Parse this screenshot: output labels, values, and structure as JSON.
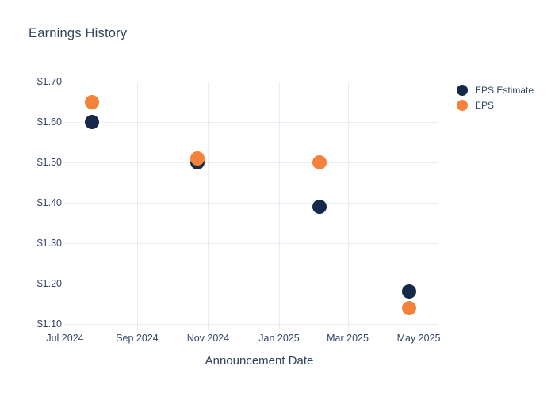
{
  "title": "Earnings History",
  "chart_data": {
    "type": "scatter",
    "title": "Earnings History",
    "xlabel": "Announcement Date",
    "ylabel": "",
    "x_axis_type": "date",
    "xlim": [
      "2024-07-01",
      "2025-05-18"
    ],
    "ylim": [
      1.1,
      1.7
    ],
    "y_tick_step": 0.1,
    "y_tick_prefix": "$",
    "grid": true,
    "legend_position": "right",
    "x_ticks": [
      {
        "date": "2024-07-01",
        "label": "Jul 2024"
      },
      {
        "date": "2024-09-01",
        "label": "Sep 2024"
      },
      {
        "date": "2024-11-01",
        "label": "Nov 2024"
      },
      {
        "date": "2025-01-01",
        "label": "Jan 2025"
      },
      {
        "date": "2025-03-01",
        "label": "Mar 2025"
      },
      {
        "date": "2025-05-01",
        "label": "May 2025"
      }
    ],
    "series": [
      {
        "name": "EPS Estimate",
        "color": "#17294b",
        "points": [
          {
            "x": "2024-07-24",
            "y": 1.6
          },
          {
            "x": "2024-10-23",
            "y": 1.5
          },
          {
            "x": "2025-02-05",
            "y": 1.39
          },
          {
            "x": "2025-04-23",
            "y": 1.18
          }
        ]
      },
      {
        "name": "EPS",
        "color": "#f5823b",
        "points": [
          {
            "x": "2024-07-24",
            "y": 1.65
          },
          {
            "x": "2024-10-23",
            "y": 1.51
          },
          {
            "x": "2025-02-05",
            "y": 1.5
          },
          {
            "x": "2025-04-23",
            "y": 1.14
          }
        ]
      }
    ]
  },
  "colors": {
    "background": "#ffffff",
    "grid": "#e9ecf4",
    "title_text": "#31425c",
    "tick_text": "#344563",
    "eps_estimate": "#17294b",
    "eps": "#f5823b"
  }
}
